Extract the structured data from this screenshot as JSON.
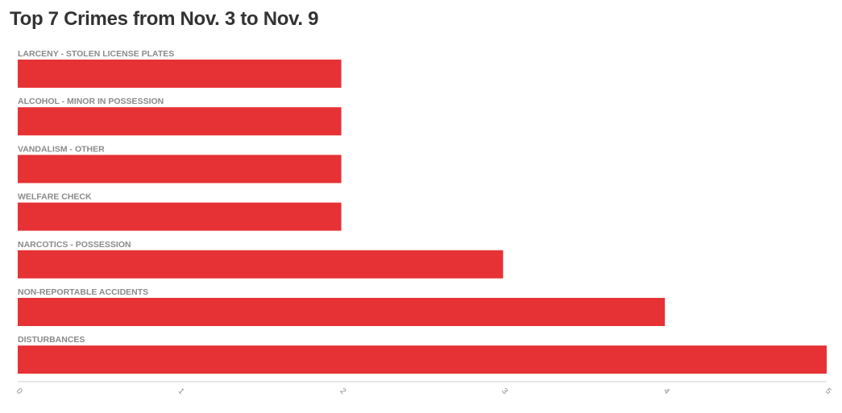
{
  "title": "Top 7 Crimes from Nov. 3 to Nov. 9",
  "colors": {
    "bar": "#e63234",
    "axis": "#cfcfcf",
    "text": "#8a8a8a",
    "title": "#333333"
  },
  "chart_data": {
    "type": "bar",
    "orientation": "horizontal",
    "title": "Top 7 Crimes from Nov. 3 to Nov. 9",
    "categories": [
      "LARCENY - STOLEN LICENSE PLATES",
      "ALCOHOL - MINOR IN POSSESSION",
      "VANDALISM - OTHER",
      "WELFARE CHECK",
      "NARCOTICS - POSSESSION",
      "NON-REPORTABLE ACCIDENTS",
      "DISTURBANCES"
    ],
    "values": [
      2,
      2,
      2,
      2,
      3,
      4,
      5
    ],
    "xlim": [
      0,
      5
    ],
    "x_ticks": [
      "0",
      "1",
      "2",
      "3",
      "4",
      "5"
    ],
    "xlabel": "",
    "ylabel": "",
    "grid": false,
    "legend": "none"
  }
}
